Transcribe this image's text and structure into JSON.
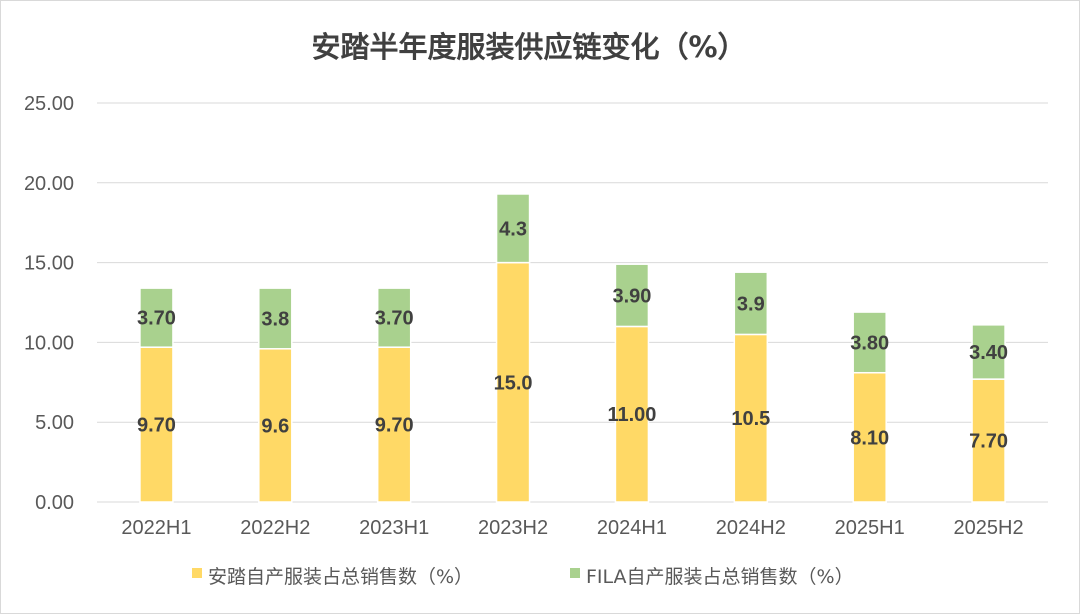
{
  "chart_data": {
    "type": "bar",
    "stacked": true,
    "title": "安踏半年度服装供应链变化（%）",
    "categories": [
      "2022H1",
      "2022H2",
      "2023H1",
      "2023H2",
      "2024H1",
      "2024H2",
      "2025H1",
      "2025H2"
    ],
    "series": [
      {
        "name": "安踏自产服装占总销售数（%）",
        "color": "#ffd966",
        "values": [
          9.7,
          9.6,
          9.7,
          15.0,
          11.0,
          10.5,
          8.1,
          7.7
        ],
        "labels": [
          "9.70",
          "9.6",
          "9.70",
          "15.0",
          "11.00",
          "10.5",
          "8.10",
          "7.70"
        ]
      },
      {
        "name": "FILA自产服装占总销售数（%）",
        "color": "#a9d18e",
        "values": [
          3.7,
          3.8,
          3.7,
          4.3,
          3.9,
          3.9,
          3.8,
          3.4
        ],
        "labels": [
          "3.70",
          "3.8",
          "3.70",
          "4.3",
          "3.90",
          "3.9",
          "3.80",
          "3.40"
        ]
      }
    ],
    "ylim": [
      0,
      25
    ],
    "yticks": [
      "0.00",
      "5.00",
      "10.00",
      "15.00",
      "20.00",
      "25.00"
    ],
    "ytick_values": [
      0,
      5,
      10,
      15,
      20,
      25
    ],
    "grid": true,
    "legend": "bottom"
  }
}
